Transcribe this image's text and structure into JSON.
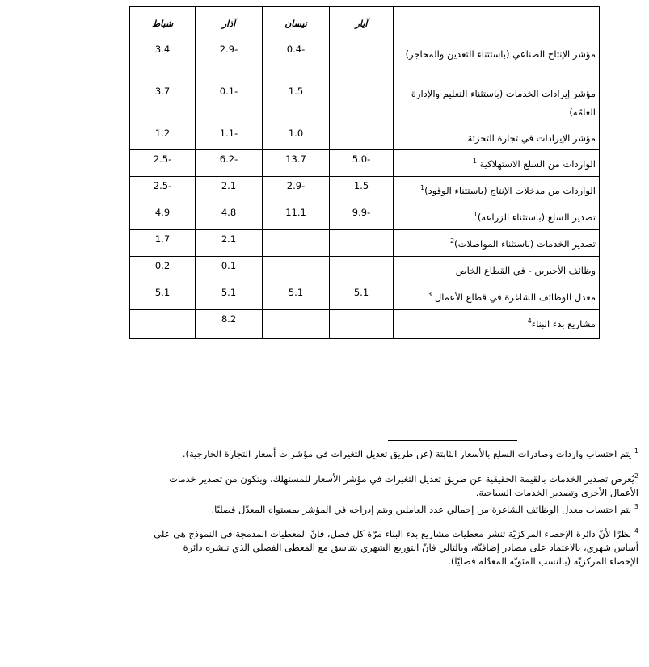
{
  "table": {
    "headers": [
      "آيار",
      "نيسان",
      "آذار",
      "شباط"
    ],
    "rows": [
      {
        "label": "مؤشر الإنتاج الصناعي (باستثناء التعدين والمحاجر)",
        "sup": "",
        "values": [
          "",
          "-0.4",
          "-2.9",
          "3.4"
        ],
        "h": 52
      },
      {
        "label": "مؤشر إيرادات الخدمات (باستثناء التعليم والإدارة العامّة)",
        "sup": "",
        "values": [
          "",
          "1.5",
          "-0.1",
          "3.7"
        ],
        "h": 52
      },
      {
        "label": "مؤشر الإيرادات في تجارة التجزئة",
        "sup": "",
        "values": [
          "",
          "1.0",
          "-1.1",
          "1.2"
        ],
        "h": 32
      },
      {
        "label": "الواردات من السلع الاستهلاكية ",
        "sup": "1",
        "values": [
          "-5.0",
          "13.7",
          "-6.2",
          "-2.5"
        ],
        "h": 33
      },
      {
        "label": "الواردات من مدخلات الإنتاج (باستثناء الوقود)",
        "sup": "1",
        "values": [
          "1.5",
          "-2.9",
          "2.1",
          "-2.5"
        ],
        "h": 33
      },
      {
        "label": "تصدير السلع (باستثناء الزراعة)",
        "sup": "1",
        "values": [
          "-9.9",
          "11.1",
          "4.8",
          "4.9"
        ],
        "h": 33
      },
      {
        "label": "تصدير الخدمات (باستثناء المواصلات)",
        "sup": "2",
        "values": [
          "",
          "",
          "2.1",
          "1.7"
        ],
        "h": 33
      },
      {
        "label": "وظائف الأجيرين - في القطاع الخاص",
        "sup": "",
        "values": [
          "",
          "",
          "0.1",
          "0.2"
        ],
        "h": 33
      },
      {
        "label": "معدل الوظائف الشاغرة في قطاع الأعمال ",
        "sup": "3",
        "values": [
          "5.1",
          "5.1",
          "5.1",
          "5.1"
        ],
        "h": 33
      },
      {
        "label": "مشاريع بدء البناء",
        "sup": "4",
        "values": [
          "",
          "",
          "8.2",
          ""
        ],
        "h": 36
      }
    ]
  },
  "footnotes": [
    {
      "num": "1",
      "text": " يتم احتساب واردات وصادرات السلع بالأسعار الثابتة (عن طريق تعديل التغيرات في مؤشرات أسعار التجارة الخارجية)."
    },
    {
      "num": "2",
      "text": "يُعرض تصدير الخدمات بالقيمة الحقيقية عن طريق تعديل التغيرات في مؤشر الأسعار للمستهلك، ويتكون من تصدير خدمات الأعمال الأخرى وتصدير الخدمات السياحية."
    },
    {
      "num": "3",
      "text": " يتم احتساب معدل الوظائف الشاغرة من إجمالي عدد العاملين ويتم إدراجه في المؤشر بمستواه المعدّل فصليًا."
    },
    {
      "num": "4",
      "text": " نظرًا لأنّ دائرة الإحصاء المركزيّة تنشر معطيات مشاريع بدء البناء مرّة كل فصل، فانّ المعطيات المدمجة في النموذج هي على أساس شهري، بالاعتماد على مصادر إضافيّة، وبالتالي فانّ التوزيع الشهري يتناسق مع المعطى الفصلي الذي تنشره دائرة الإحصاء المركزيّة (بالنسب المئويّة المعدّلة فصليًا)."
    }
  ]
}
